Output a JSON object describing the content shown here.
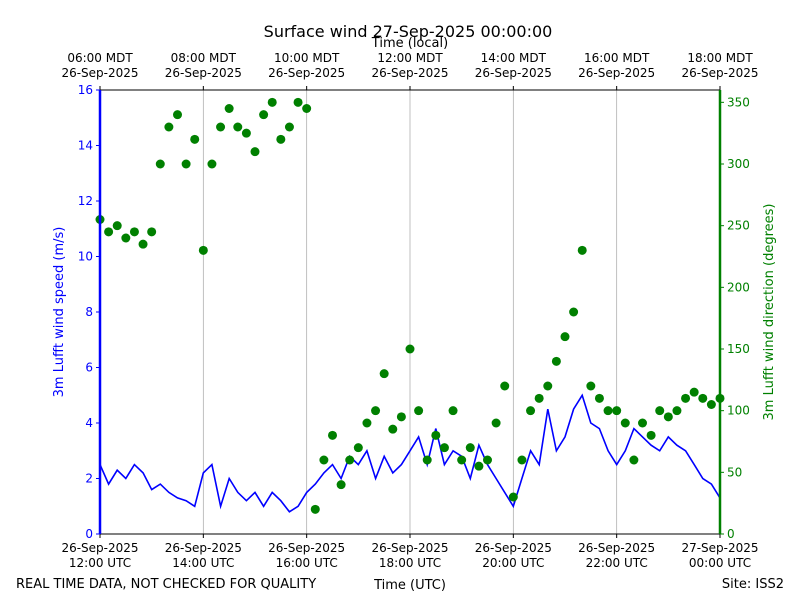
{
  "chart_data": {
    "type": "line_scatter",
    "title": "Surface wind 27-Sep-2025 00:00:00",
    "x2label": "Time (local)",
    "xlabel": "Time (UTC)",
    "ylabel": "3m Lufft wind speed (m/s)",
    "y2label": "3m Lufft wind direction (degrees)",
    "footer_left": "REAL TIME DATA, NOT CHECKED FOR QUALITY",
    "footer_right": "Site: ISS2",
    "grid": true,
    "xlim": [
      "2025-09-26 12:00",
      "2025-09-27 00:00"
    ],
    "xticks": [
      {
        "value": "2025-09-26 12:00",
        "label": "26-Sep-2025\n12:00 UTC"
      },
      {
        "value": "2025-09-26 14:00",
        "label": "26-Sep-2025\n14:00 UTC"
      },
      {
        "value": "2025-09-26 16:00",
        "label": "26-Sep-2025\n16:00 UTC"
      },
      {
        "value": "2025-09-26 18:00",
        "label": "26-Sep-2025\n18:00 UTC"
      },
      {
        "value": "2025-09-26 20:00",
        "label": "26-Sep-2025\n20:00 UTC"
      },
      {
        "value": "2025-09-26 22:00",
        "label": "26-Sep-2025\n22:00 UTC"
      },
      {
        "value": "2025-09-27 00:00",
        "label": "27-Sep-2025\n00:00 UTC"
      }
    ],
    "x2ticks": [
      {
        "value": "2025-09-26 12:00",
        "label": "06:00 MDT\n26-Sep-2025"
      },
      {
        "value": "2025-09-26 14:00",
        "label": "08:00 MDT\n26-Sep-2025"
      },
      {
        "value": "2025-09-26 16:00",
        "label": "10:00 MDT\n26-Sep-2025"
      },
      {
        "value": "2025-09-26 18:00",
        "label": "12:00 MDT\n26-Sep-2025"
      },
      {
        "value": "2025-09-26 20:00",
        "label": "14:00 MDT\n26-Sep-2025"
      },
      {
        "value": "2025-09-26 22:00",
        "label": "16:00 MDT\n26-Sep-2025"
      },
      {
        "value": "2025-09-27 00:00",
        "label": "18:00 MDT\n26-Sep-2025"
      }
    ],
    "ylim": [
      0,
      16
    ],
    "yticks": [
      0,
      2,
      4,
      6,
      8,
      10,
      12,
      14,
      16
    ],
    "y2lim": [
      0,
      360
    ],
    "y2ticks": [
      0,
      50,
      100,
      150,
      200,
      250,
      300,
      350
    ],
    "x": [
      "2025-09-26 12:00",
      "2025-09-26 12:10",
      "2025-09-26 12:20",
      "2025-09-26 12:30",
      "2025-09-26 12:40",
      "2025-09-26 12:50",
      "2025-09-26 13:00",
      "2025-09-26 13:10",
      "2025-09-26 13:20",
      "2025-09-26 13:30",
      "2025-09-26 13:40",
      "2025-09-26 13:50",
      "2025-09-26 14:00",
      "2025-09-26 14:10",
      "2025-09-26 14:20",
      "2025-09-26 14:30",
      "2025-09-26 14:40",
      "2025-09-26 14:50",
      "2025-09-26 15:00",
      "2025-09-26 15:10",
      "2025-09-26 15:20",
      "2025-09-26 15:30",
      "2025-09-26 15:40",
      "2025-09-26 15:50",
      "2025-09-26 16:00",
      "2025-09-26 16:10",
      "2025-09-26 16:20",
      "2025-09-26 16:30",
      "2025-09-26 16:40",
      "2025-09-26 16:50",
      "2025-09-26 17:00",
      "2025-09-26 17:10",
      "2025-09-26 17:20",
      "2025-09-26 17:30",
      "2025-09-26 17:40",
      "2025-09-26 17:50",
      "2025-09-26 18:00",
      "2025-09-26 18:10",
      "2025-09-26 18:20",
      "2025-09-26 18:30",
      "2025-09-26 18:40",
      "2025-09-26 18:50",
      "2025-09-26 19:00",
      "2025-09-26 19:10",
      "2025-09-26 19:20",
      "2025-09-26 19:30",
      "2025-09-26 19:40",
      "2025-09-26 19:50",
      "2025-09-26 20:00",
      "2025-09-26 20:10",
      "2025-09-26 20:20",
      "2025-09-26 20:30",
      "2025-09-26 20:40",
      "2025-09-26 20:50",
      "2025-09-26 21:00",
      "2025-09-26 21:10",
      "2025-09-26 21:20",
      "2025-09-26 21:30",
      "2025-09-26 21:40",
      "2025-09-26 21:50",
      "2025-09-26 22:00",
      "2025-09-26 22:10",
      "2025-09-26 22:20",
      "2025-09-26 22:30",
      "2025-09-26 22:40",
      "2025-09-26 22:50",
      "2025-09-26 23:00",
      "2025-09-26 23:10",
      "2025-09-26 23:20",
      "2025-09-26 23:30",
      "2025-09-26 23:40",
      "2025-09-26 23:50",
      "2025-09-27 00:00"
    ],
    "series": [
      {
        "type": "line",
        "color": "#0000ff",
        "axis": "y",
        "values": [
          2.5,
          1.8,
          2.3,
          2.0,
          2.5,
          2.2,
          1.6,
          1.8,
          1.5,
          1.3,
          1.2,
          1.0,
          2.2,
          2.5,
          1.0,
          2.0,
          1.5,
          1.2,
          1.5,
          1.0,
          1.5,
          1.2,
          0.8,
          1.0,
          1.5,
          1.8,
          2.2,
          2.5,
          2.0,
          2.8,
          2.5,
          3.0,
          2.0,
          2.8,
          2.2,
          2.5,
          3.0,
          3.5,
          2.5,
          3.8,
          2.5,
          3.0,
          2.8,
          2.0,
          3.2,
          2.5,
          2.0,
          1.5,
          1.0,
          2.0,
          3.0,
          2.5,
          4.5,
          3.0,
          3.5,
          4.5,
          5.0,
          4.0,
          3.8,
          3.0,
          2.5,
          3.0,
          3.8,
          3.5,
          3.2,
          3.0,
          3.5,
          3.2,
          3.0,
          2.5,
          2.0,
          1.8,
          1.3
        ]
      },
      {
        "type": "scatter",
        "color": "#008000",
        "axis": "y2",
        "values": [
          255,
          245,
          250,
          240,
          245,
          235,
          245,
          300,
          330,
          340,
          300,
          320,
          230,
          300,
          330,
          345,
          330,
          325,
          310,
          340,
          350,
          320,
          330,
          350,
          345,
          20,
          60,
          80,
          40,
          60,
          70,
          90,
          100,
          130,
          85,
          95,
          150,
          100,
          60,
          80,
          70,
          100,
          60,
          70,
          55,
          60,
          90,
          120,
          30,
          60,
          100,
          110,
          120,
          140,
          160,
          180,
          230,
          120,
          110,
          100,
          100,
          90,
          60,
          90,
          80,
          100,
          95,
          100,
          110,
          115,
          110,
          105,
          110
        ]
      }
    ]
  }
}
